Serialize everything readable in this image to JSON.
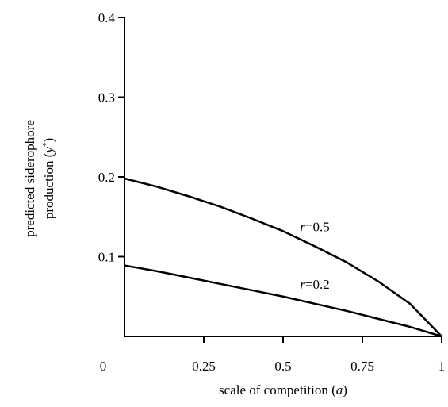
{
  "chart_data": {
    "type": "line",
    "xlabel": {
      "prefix": "scale of competition (",
      "symbol": "a",
      "suffix": ")"
    },
    "ylabel": {
      "line1": "predicted siderophore",
      "line2_prefix": "production (",
      "line2_symbol": "y",
      "line2_sup": "*",
      "line2_suffix": ")"
    },
    "xlim": [
      0,
      1
    ],
    "ylim": [
      0,
      0.4
    ],
    "xticks": [
      {
        "value": 0,
        "label": "0"
      },
      {
        "value": 0.25,
        "label": "0.25"
      },
      {
        "value": 0.5,
        "label": "0.5"
      },
      {
        "value": 0.75,
        "label": "0.75"
      },
      {
        "value": 1,
        "label": "1"
      }
    ],
    "yticks": [
      {
        "value": 0.1,
        "label": "0.1"
      },
      {
        "value": 0.2,
        "label": "0.2"
      },
      {
        "value": 0.3,
        "label": "0.3"
      },
      {
        "value": 0.4,
        "label": "0.4"
      }
    ],
    "grid": false,
    "legend": "none",
    "series": [
      {
        "name": "r=0.5",
        "label_symbol": "r",
        "label_value": "=0.5",
        "x": [
          0,
          0.1,
          0.2,
          0.3,
          0.4,
          0.5,
          0.6,
          0.7,
          0.8,
          0.9,
          1.0
        ],
        "y": [
          0.198,
          0.188,
          0.176,
          0.163,
          0.148,
          0.132,
          0.113,
          0.093,
          0.069,
          0.041,
          0.0
        ]
      },
      {
        "name": "r=0.2",
        "label_symbol": "r",
        "label_value": "=0.2",
        "x": [
          0,
          0.1,
          0.2,
          0.3,
          0.4,
          0.5,
          0.6,
          0.7,
          0.8,
          0.9,
          1.0
        ],
        "y": [
          0.089,
          0.082,
          0.074,
          0.066,
          0.058,
          0.05,
          0.041,
          0.032,
          0.022,
          0.012,
          0.0
        ]
      }
    ],
    "line_color": "#000000"
  }
}
